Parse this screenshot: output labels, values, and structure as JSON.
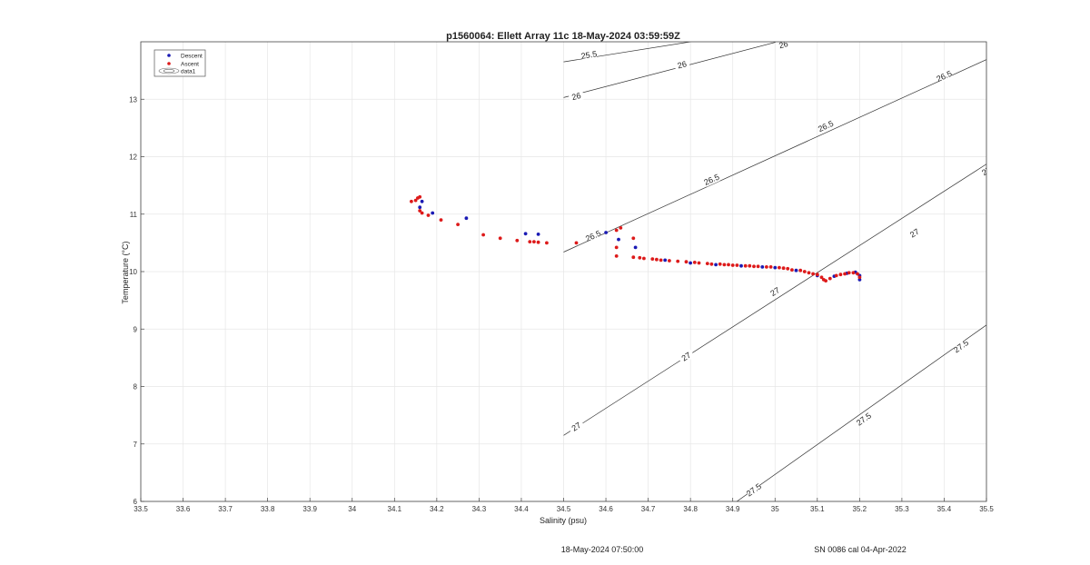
{
  "chart_data": {
    "type": "scatter",
    "title": "p1560064: Ellett Array 11c 18-May-2024 03:59:59Z",
    "xlabel": "Salinity (psu)",
    "ylabel": "Temperature (°C)",
    "xlim": [
      33.5,
      35.5
    ],
    "ylim": [
      6,
      14
    ],
    "xticks": [
      "33.5",
      "33.6",
      "33.7",
      "33.8",
      "33.9",
      "34",
      "34.1",
      "34.2",
      "34.3",
      "34.4",
      "34.5",
      "34.6",
      "34.7",
      "34.8",
      "34.9",
      "35",
      "35.1",
      "35.2",
      "35.3",
      "35.4",
      "35.5"
    ],
    "yticks": [
      "6",
      "7",
      "8",
      "9",
      "10",
      "11",
      "12",
      "13"
    ],
    "grid": true,
    "legend_position": "top-left",
    "legend": [
      "Descent",
      "Ascent",
      "data1"
    ],
    "series": [
      {
        "name": "Descent",
        "color": "#1a1ab4",
        "points": [
          [
            34.165,
            11.22
          ],
          [
            34.16,
            11.12
          ],
          [
            34.19,
            11.02
          ],
          [
            34.27,
            10.93
          ],
          [
            34.41,
            10.66
          ],
          [
            34.44,
            10.65
          ],
          [
            34.6,
            10.68
          ],
          [
            34.63,
            10.56
          ],
          [
            34.67,
            10.42
          ],
          [
            34.74,
            10.2
          ],
          [
            34.8,
            10.15
          ],
          [
            34.86,
            10.12
          ],
          [
            34.92,
            10.1
          ],
          [
            34.97,
            10.08
          ],
          [
            35.0,
            10.07
          ],
          [
            35.05,
            10.02
          ],
          [
            35.1,
            9.93
          ],
          [
            35.14,
            9.92
          ],
          [
            35.17,
            9.97
          ],
          [
            35.19,
            9.99
          ],
          [
            35.2,
            9.93
          ],
          [
            35.2,
            9.86
          ]
        ]
      },
      {
        "name": "Ascent",
        "color": "#dd1a1a",
        "points": [
          [
            34.14,
            11.22
          ],
          [
            34.15,
            11.24
          ],
          [
            34.155,
            11.28
          ],
          [
            34.16,
            11.3
          ],
          [
            34.16,
            11.06
          ],
          [
            34.165,
            11.02
          ],
          [
            34.18,
            10.98
          ],
          [
            34.21,
            10.9
          ],
          [
            34.25,
            10.82
          ],
          [
            34.31,
            10.64
          ],
          [
            34.35,
            10.58
          ],
          [
            34.39,
            10.54
          ],
          [
            34.42,
            10.52
          ],
          [
            34.43,
            10.52
          ],
          [
            34.44,
            10.51
          ],
          [
            34.46,
            10.5
          ],
          [
            34.53,
            10.5
          ],
          [
            34.625,
            10.72
          ],
          [
            34.635,
            10.76
          ],
          [
            34.625,
            10.42
          ],
          [
            34.625,
            10.27
          ],
          [
            34.665,
            10.58
          ],
          [
            34.665,
            10.25
          ],
          [
            34.68,
            10.24
          ],
          [
            34.69,
            10.23
          ],
          [
            34.71,
            10.22
          ],
          [
            34.72,
            10.21
          ],
          [
            34.73,
            10.2
          ],
          [
            34.75,
            10.19
          ],
          [
            34.77,
            10.18
          ],
          [
            34.79,
            10.17
          ],
          [
            34.81,
            10.16
          ],
          [
            34.82,
            10.15
          ],
          [
            34.84,
            10.14
          ],
          [
            34.85,
            10.13
          ],
          [
            34.87,
            10.13
          ],
          [
            34.88,
            10.12
          ],
          [
            34.89,
            10.12
          ],
          [
            34.9,
            10.11
          ],
          [
            34.91,
            10.11
          ],
          [
            34.93,
            10.1
          ],
          [
            34.94,
            10.1
          ],
          [
            34.95,
            10.09
          ],
          [
            34.96,
            10.09
          ],
          [
            34.98,
            10.08
          ],
          [
            34.99,
            10.08
          ],
          [
            35.01,
            10.07
          ],
          [
            35.02,
            10.06
          ],
          [
            35.03,
            10.05
          ],
          [
            35.04,
            10.03
          ],
          [
            35.06,
            10.02
          ],
          [
            35.07,
            10.0
          ],
          [
            35.08,
            9.98
          ],
          [
            35.09,
            9.96
          ],
          [
            35.1,
            9.95
          ],
          [
            35.11,
            9.9
          ],
          [
            35.115,
            9.86
          ],
          [
            35.12,
            9.84
          ],
          [
            35.13,
            9.88
          ],
          [
            35.145,
            9.93
          ],
          [
            35.155,
            9.95
          ],
          [
            35.165,
            9.96
          ],
          [
            35.175,
            9.98
          ],
          [
            35.185,
            9.98
          ],
          [
            35.195,
            9.96
          ],
          [
            35.2,
            9.9
          ]
        ]
      }
    ],
    "contours": [
      {
        "level": "25.5",
        "labels": [
          [
            34.56,
            13.77
          ]
        ],
        "points": [
          [
            34.5,
            13.65
          ],
          [
            34.8,
            14.0
          ]
        ]
      },
      {
        "level": "26",
        "labels": [
          [
            34.53,
            13.05
          ],
          [
            34.78,
            13.6
          ],
          [
            35.02,
            13.95
          ],
          [
            35.27,
            14.28
          ]
        ],
        "points": [
          [
            34.5,
            13.03
          ],
          [
            35.5,
            14.95
          ]
        ]
      },
      {
        "level": "26.5",
        "labels": [
          [
            34.57,
            10.62
          ],
          [
            34.85,
            11.6
          ],
          [
            35.12,
            12.53
          ],
          [
            35.4,
            13.4
          ]
        ],
        "points": [
          [
            34.5,
            10.34
          ],
          [
            35.5,
            13.69
          ]
        ]
      },
      {
        "level": "27",
        "labels": [
          [
            34.53,
            7.3
          ],
          [
            34.79,
            8.52
          ],
          [
            35.0,
            9.65
          ],
          [
            35.33,
            10.67
          ],
          [
            35.5,
            11.75
          ]
        ],
        "points": [
          [
            34.5,
            7.15
          ],
          [
            35.5,
            11.87
          ]
        ]
      },
      {
        "level": "27.5",
        "labels": [
          [
            34.95,
            6.2
          ],
          [
            35.21,
            7.43
          ],
          [
            35.44,
            8.7
          ]
        ],
        "points": [
          [
            34.9,
            5.95
          ],
          [
            35.5,
            9.07
          ]
        ]
      }
    ]
  },
  "footer": {
    "left": "18-May-2024 07:50:00",
    "right": "SN 0086 cal 04-Apr-2022"
  }
}
